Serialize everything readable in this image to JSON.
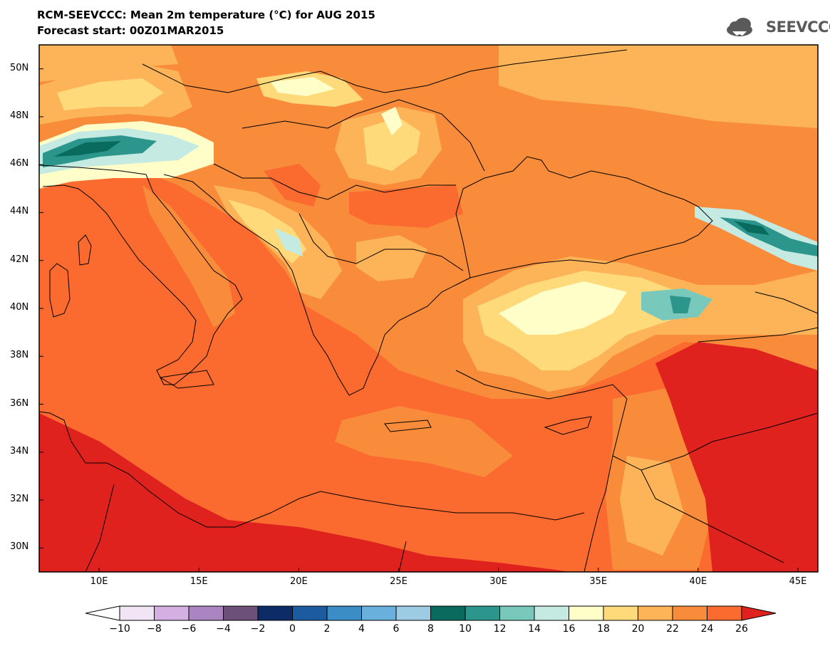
{
  "title": {
    "line1": "RCM-SEEVCCC: Mean 2m temperature (°C) for AUG 2015",
    "line2": "Forecast start: 00Z01MAR2015"
  },
  "logo": {
    "text": "SEEVCCC",
    "icon": "cloud-icon"
  },
  "map": {
    "lon_range": [
      7,
      46
    ],
    "lat_range": [
      29,
      51
    ],
    "lat_labels": [
      "50N",
      "48N",
      "46N",
      "44N",
      "42N",
      "40N",
      "38N",
      "36N",
      "34N",
      "32N",
      "30N"
    ],
    "lon_labels": [
      "10E",
      "15E",
      "20E",
      "25E",
      "30E",
      "35E",
      "40E",
      "45E"
    ],
    "background_color": "#fb6a2e"
  },
  "colorbar": {
    "labels": [
      "−10",
      "−8",
      "−6",
      "−4",
      "−2",
      "0",
      "2",
      "4",
      "6",
      "8",
      "10",
      "12",
      "14",
      "16",
      "18",
      "20",
      "22",
      "24",
      "26"
    ],
    "colors": [
      "#ffffff",
      "#f1e4f5",
      "#d3b0e1",
      "#a985c2",
      "#6c5077",
      "#0c2b67",
      "#1d5ba0",
      "#3a8dc5",
      "#69b0dd",
      "#9ccbe3",
      "#096b5d",
      "#2c968d",
      "#78c8bc",
      "#c4eae2",
      "#fffdc8",
      "#ffda7a",
      "#fdb458",
      "#f88c3a",
      "#fb6a2e",
      "#e0221f"
    ]
  }
}
